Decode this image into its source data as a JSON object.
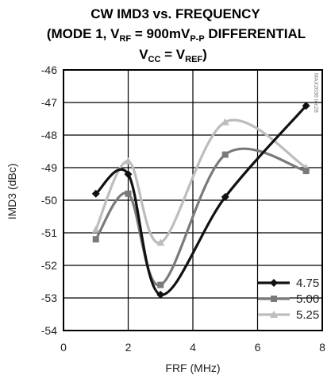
{
  "chart_data": {
    "type": "line",
    "title": {
      "line1": "CW IMD3 vs. FREQUENCY",
      "line2_a": "(MODE 1, V",
      "line2_sub1": "RF",
      "line2_b": " = 900mV",
      "line2_sub2": "P-P",
      "line2_c": " DIFFERENTIAL",
      "line3_a": "V",
      "line3_sub1": "CC",
      "line3_b": " = V",
      "line3_sub2": "REF",
      "line3_c": ")"
    },
    "xlabel": "FRF (MHz)",
    "ylabel": "IMD3 (dBc)",
    "xlim": [
      0,
      8
    ],
    "ylim": [
      -54,
      -46
    ],
    "xticks": [
      0,
      2,
      4,
      6,
      8
    ],
    "yticks": [
      -46,
      -47,
      -48,
      -49,
      -50,
      -51,
      -52,
      -53,
      -54
    ],
    "grid": true,
    "legend_position": "bottom-right",
    "watermark": "MAX2036 toc28",
    "series": [
      {
        "name": "4.75",
        "marker": "diamond",
        "color": "#111111",
        "x": [
          1,
          2,
          3,
          5,
          7.5
        ],
        "y": [
          -49.8,
          -49.2,
          -52.9,
          -49.9,
          -47.1
        ]
      },
      {
        "name": "5.00",
        "marker": "square",
        "color": "#7a7a7a",
        "x": [
          1,
          2,
          3,
          5,
          7.5
        ],
        "y": [
          -51.2,
          -49.8,
          -52.6,
          -48.6,
          -49.1
        ]
      },
      {
        "name": "5.25",
        "marker": "triangle",
        "color": "#bdbdbd",
        "x": [
          1,
          2,
          3,
          5,
          7.5
        ],
        "y": [
          -50.9,
          -48.8,
          -51.3,
          -47.6,
          -49.0
        ]
      }
    ]
  }
}
